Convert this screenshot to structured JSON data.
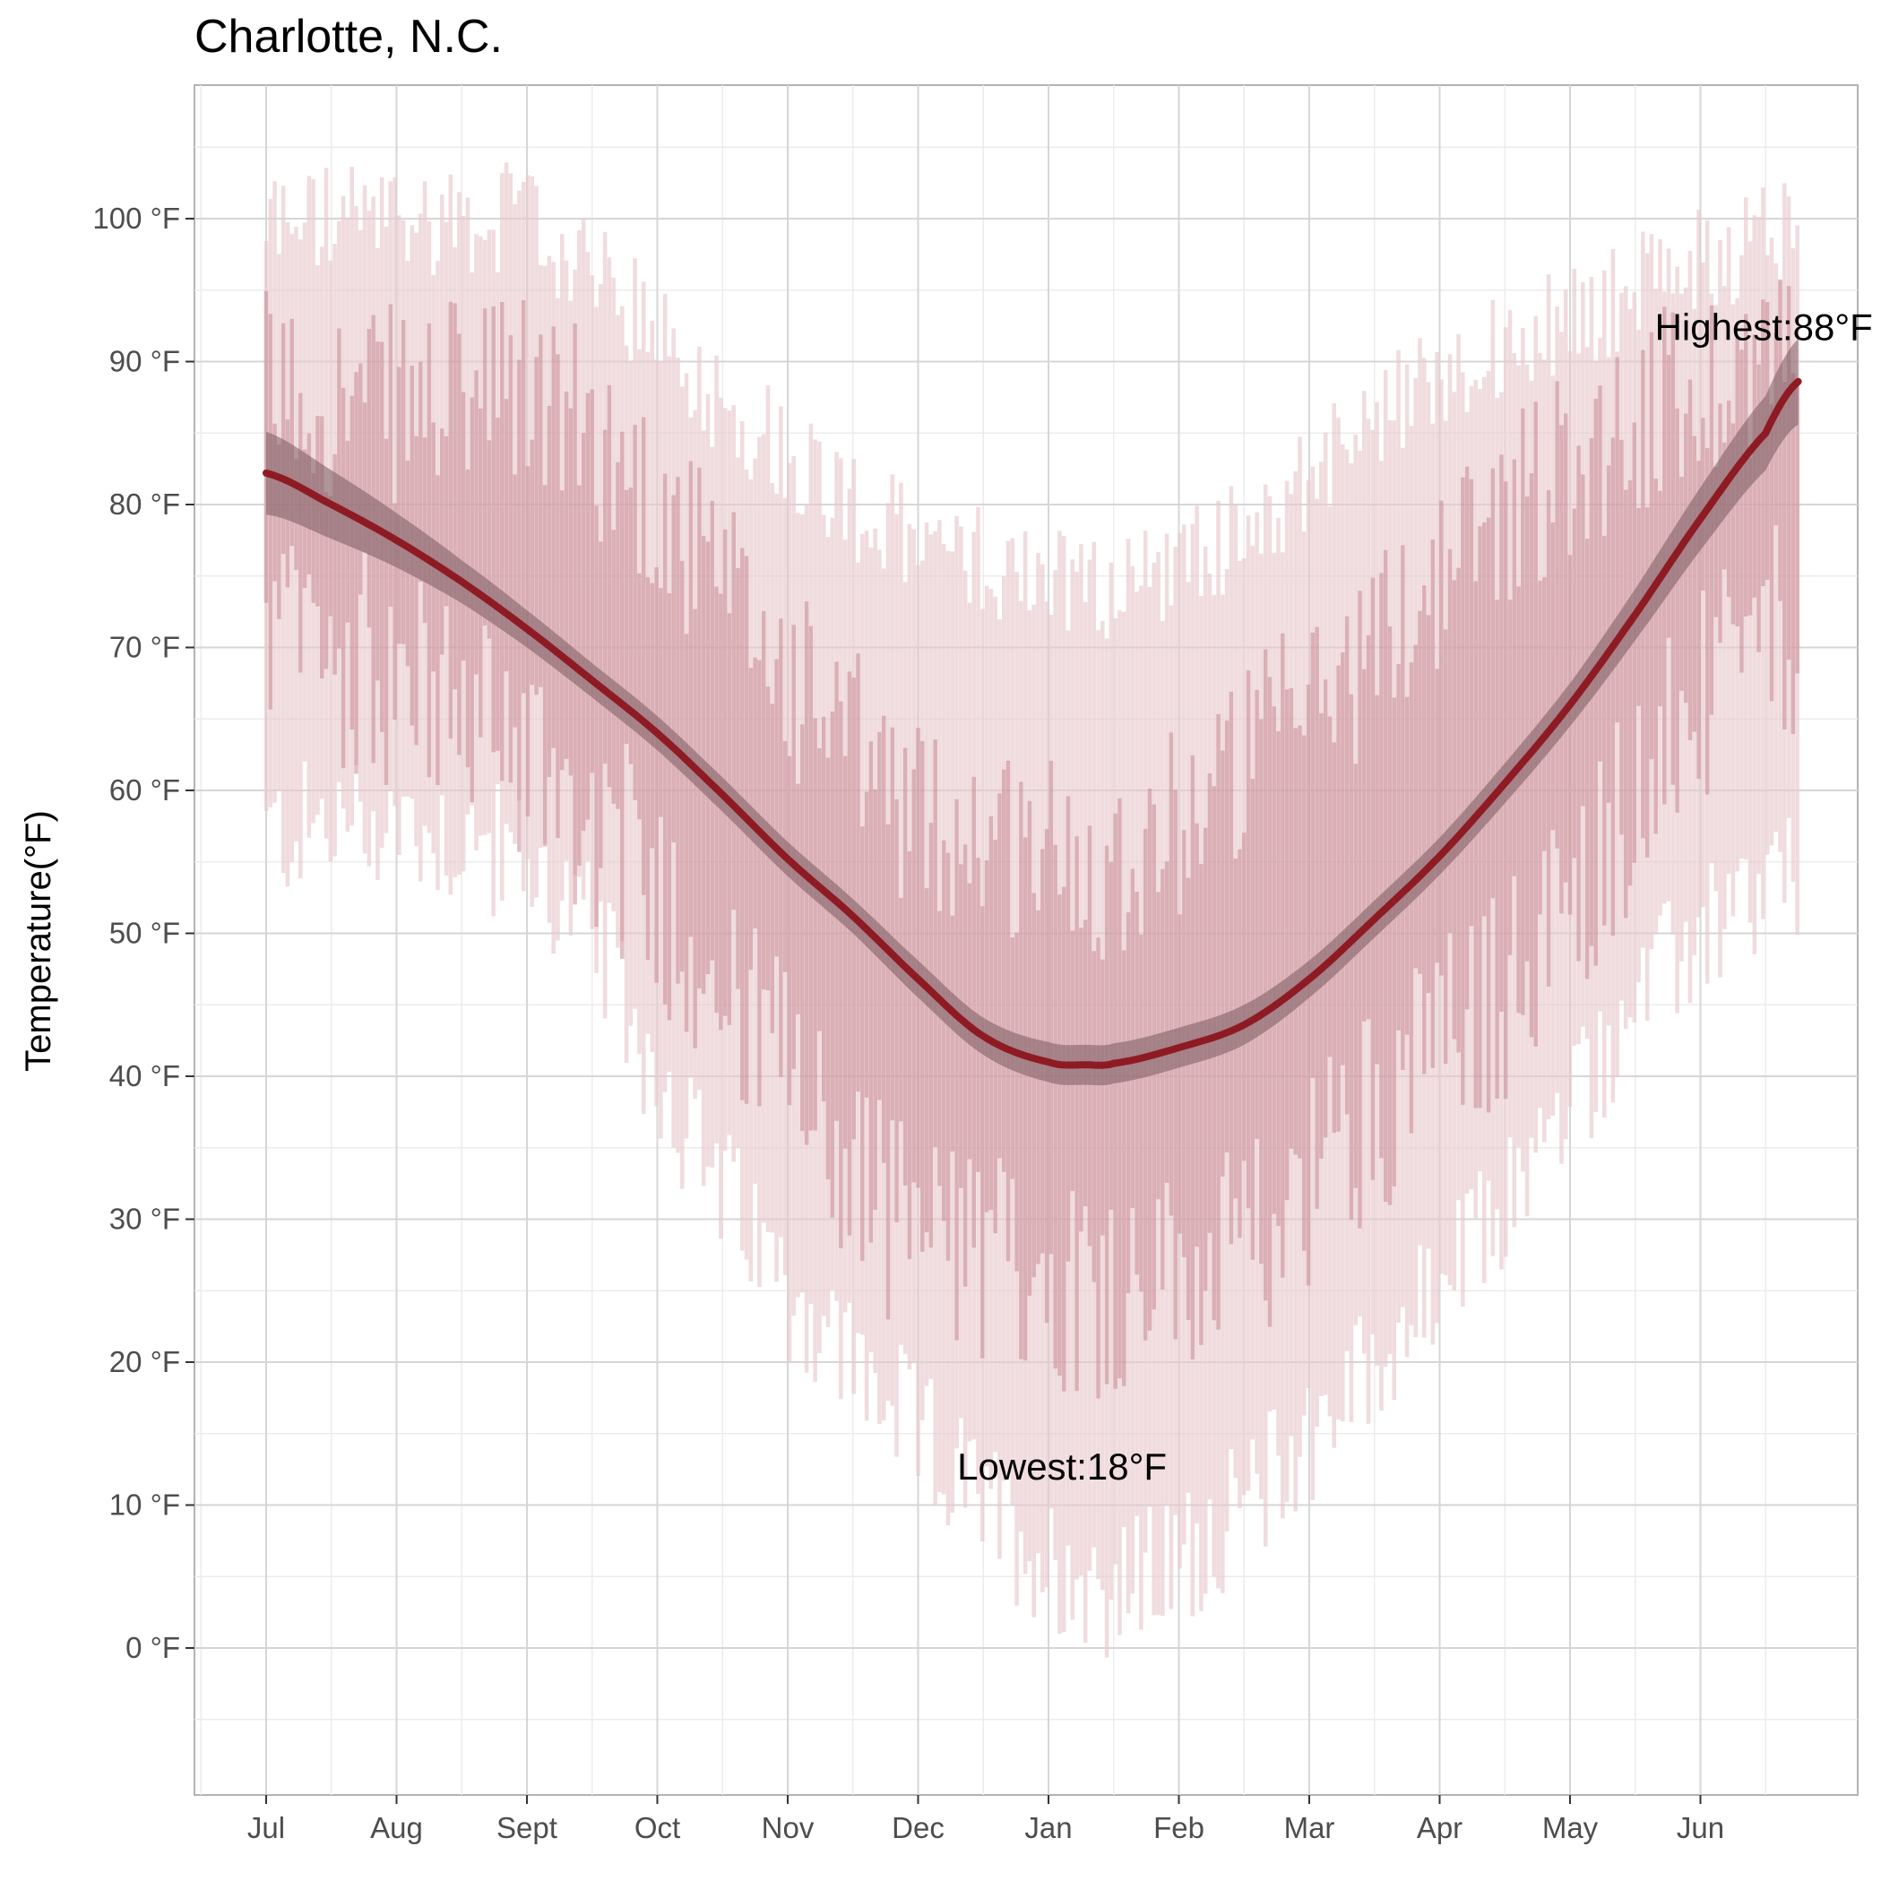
{
  "chart_data": {
    "type": "area",
    "title": "Charlotte, N.C.",
    "xlabel": "",
    "ylabel": "Temperature(°F)",
    "ylim": [
      -10,
      110
    ],
    "y_ticks": [
      0,
      10,
      20,
      30,
      40,
      50,
      60,
      70,
      80,
      90,
      100
    ],
    "y_tick_labels": [
      "0 °F",
      "10 °F",
      "20 °F",
      "30 °F",
      "40 °F",
      "50 °F",
      "60 °F",
      "70 °F",
      "80 °F",
      "90 °F",
      "100 °F"
    ],
    "x_months": [
      "Jul",
      "Aug",
      "Sept",
      "Oct",
      "Nov",
      "Dec",
      "Jan",
      "Feb",
      "Mar",
      "Apr",
      "May",
      "Jun"
    ],
    "grid": true,
    "colors": {
      "record_range": "#e8c9cd",
      "normal_range": "#c98a93",
      "trend_line": "#8e1b24",
      "confidence_band": "#7a5a5e"
    },
    "series": [
      {
        "kind": "record-range",
        "anchors": [
          {
            "month": 0,
            "low": 57,
            "high": 100
          },
          {
            "month": 1,
            "low": 58,
            "high": 100
          },
          {
            "month": 2,
            "low": 55,
            "high": 100
          },
          {
            "month": 2.5,
            "low": 50,
            "high": 96
          },
          {
            "month": 3,
            "low": 40,
            "high": 92
          },
          {
            "month": 3.5,
            "low": 32,
            "high": 87
          },
          {
            "month": 4,
            "low": 25,
            "high": 84
          },
          {
            "month": 4.5,
            "low": 20,
            "high": 80
          },
          {
            "month": 5,
            "low": 15,
            "high": 77
          },
          {
            "month": 5.5,
            "low": 10,
            "high": 76
          },
          {
            "month": 6,
            "low": 6,
            "high": 75
          },
          {
            "month": 6.5,
            "low": 4,
            "high": 74
          },
          {
            "month": 7,
            "low": 6,
            "high": 76
          },
          {
            "month": 7.5,
            "low": 10,
            "high": 78
          },
          {
            "month": 8,
            "low": 15,
            "high": 82
          },
          {
            "month": 8.5,
            "low": 20,
            "high": 86
          },
          {
            "month": 9,
            "low": 25,
            "high": 89
          },
          {
            "month": 9.5,
            "low": 31,
            "high": 91
          },
          {
            "month": 10,
            "low": 38,
            "high": 93
          },
          {
            "month": 10.5,
            "low": 45,
            "high": 95
          },
          {
            "month": 11,
            "low": 50,
            "high": 97
          },
          {
            "month": 11.75,
            "low": 54,
            "high": 100
          }
        ]
      },
      {
        "kind": "normal-range",
        "anchors": [
          {
            "month": 0,
            "low": 71,
            "high": 88
          },
          {
            "month": 1,
            "low": 68,
            "high": 87
          },
          {
            "month": 2,
            "low": 63,
            "high": 88
          },
          {
            "month": 2.5,
            "low": 58,
            "high": 85
          },
          {
            "month": 3,
            "low": 53,
            "high": 80
          },
          {
            "month": 3.5,
            "low": 46,
            "high": 74
          },
          {
            "month": 4,
            "low": 40,
            "high": 68
          },
          {
            "month": 4.5,
            "low": 33,
            "high": 63
          },
          {
            "month": 5,
            "low": 29,
            "high": 58
          },
          {
            "month": 5.5,
            "low": 27,
            "high": 57
          },
          {
            "month": 6,
            "low": 26,
            "high": 56
          },
          {
            "month": 6.5,
            "low": 25,
            "high": 55
          },
          {
            "month": 7,
            "low": 26,
            "high": 58
          },
          {
            "month": 7.5,
            "low": 27,
            "high": 62
          },
          {
            "month": 8,
            "low": 33,
            "high": 66
          },
          {
            "month": 8.5,
            "low": 38,
            "high": 70
          },
          {
            "month": 9,
            "low": 42,
            "high": 75
          },
          {
            "month": 9.5,
            "low": 46,
            "high": 80
          },
          {
            "month": 10,
            "low": 52,
            "high": 83
          },
          {
            "month": 10.5,
            "low": 60,
            "high": 86
          },
          {
            "month": 11,
            "low": 66,
            "high": 88
          },
          {
            "month": 11.75,
            "low": 72,
            "high": 92
          }
        ]
      },
      {
        "kind": "smoothed-trend",
        "points": [
          {
            "month": 0,
            "y": 82.2,
            "ci": 2.9
          },
          {
            "month": 0.5,
            "y": 80.0,
            "ci": 2.4
          },
          {
            "month": 1,
            "y": 77.5,
            "ci": 1.9
          },
          {
            "month": 1.5,
            "y": 74.6,
            "ci": 1.5
          },
          {
            "month": 2,
            "y": 71.3,
            "ci": 1.3
          },
          {
            "month": 2.5,
            "y": 67.7,
            "ci": 1.2
          },
          {
            "month": 3,
            "y": 64.0,
            "ci": 1.2
          },
          {
            "month": 3.5,
            "y": 59.7,
            "ci": 1.2
          },
          {
            "month": 4,
            "y": 55.2,
            "ci": 1.2
          },
          {
            "month": 4.5,
            "y": 51.2,
            "ci": 1.2
          },
          {
            "month": 5,
            "y": 46.8,
            "ci": 1.3
          },
          {
            "month": 5.5,
            "y": 42.8,
            "ci": 1.3
          },
          {
            "month": 6,
            "y": 41.0,
            "ci": 1.4
          },
          {
            "month": 6.3,
            "y": 40.8,
            "ci": 1.4
          },
          {
            "month": 6.5,
            "y": 40.9,
            "ci": 1.4
          },
          {
            "month": 7,
            "y": 42.0,
            "ci": 1.4
          },
          {
            "month": 7.5,
            "y": 43.6,
            "ci": 1.4
          },
          {
            "month": 8,
            "y": 46.8,
            "ci": 1.3
          },
          {
            "month": 8.5,
            "y": 51.0,
            "ci": 1.3
          },
          {
            "month": 9,
            "y": 55.4,
            "ci": 1.3
          },
          {
            "month": 9.5,
            "y": 60.5,
            "ci": 1.4
          },
          {
            "month": 10,
            "y": 66.0,
            "ci": 1.5
          },
          {
            "month": 10.5,
            "y": 72.3,
            "ci": 1.8
          },
          {
            "month": 11,
            "y": 79.0,
            "ci": 2.2
          },
          {
            "month": 11.5,
            "y": 85.0,
            "ci": 2.6
          },
          {
            "month": 11.75,
            "y": 88.6,
            "ci": 3.0
          }
        ]
      }
    ],
    "annotations": [
      {
        "text": "Highest:88°F",
        "month": 10.65,
        "y": 91.5
      },
      {
        "text": "Lowest:18°F",
        "month": 5.3,
        "y": 11.8
      }
    ]
  }
}
